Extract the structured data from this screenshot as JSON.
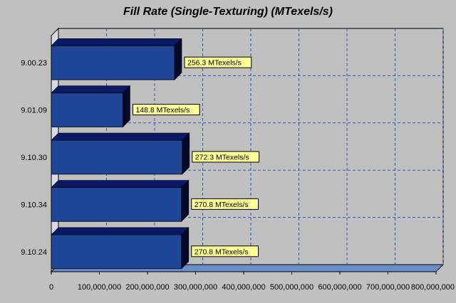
{
  "chart_data": {
    "type": "bar",
    "orientation": "horizontal",
    "title": "Fill Rate (Single-Texturing) (MTexels/s)",
    "xlabel": "",
    "ylabel": "",
    "categories": [
      "9.00.23",
      "9.01.09",
      "9.10.30",
      "9.10.34",
      "9.10.24"
    ],
    "values": [
      256300000,
      148800000,
      272300000,
      270800000,
      270800000
    ],
    "data_labels": [
      "256.3 MTexels/s",
      "148.8 MTexels/s",
      "272.3 MTexels/s",
      "270.8 MTexels/s",
      "270.8 MTexels/s"
    ],
    "x_ticks": [
      "0",
      "100,000,000",
      "200,000,000",
      "300,000,000",
      "400,000,000",
      "500,000,000",
      "600,000,000",
      "700,000,000",
      "800,000,000"
    ],
    "xlim": [
      0,
      800000000
    ],
    "grid": true,
    "colors": {
      "bar_front": "#1f4696",
      "bar_top": "#0a1a66",
      "bar_side": "#050a2a",
      "label_bg": "#ffff99",
      "grid": "#2a5db0",
      "wall": "#c0c0c0",
      "floor": "#6a8ec8"
    }
  }
}
